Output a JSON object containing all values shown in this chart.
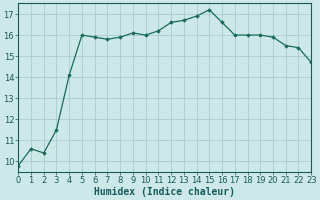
{
  "x": [
    0,
    1,
    2,
    3,
    4,
    5,
    6,
    7,
    8,
    9,
    10,
    11,
    12,
    13,
    14,
    15,
    16,
    17,
    18,
    19,
    20,
    21,
    22,
    23
  ],
  "y": [
    9.8,
    10.6,
    10.4,
    11.5,
    14.1,
    16.0,
    15.9,
    15.8,
    15.9,
    16.1,
    16.0,
    16.2,
    16.6,
    16.7,
    16.9,
    17.2,
    16.6,
    16.0,
    16.0,
    16.0,
    15.9,
    15.5,
    15.4,
    14.7
  ],
  "xlim": [
    0,
    23
  ],
  "ylim": [
    9.5,
    17.5
  ],
  "yticks": [
    10,
    11,
    12,
    13,
    14,
    15,
    16,
    17
  ],
  "xticks": [
    0,
    1,
    2,
    3,
    4,
    5,
    6,
    7,
    8,
    9,
    10,
    11,
    12,
    13,
    14,
    15,
    16,
    17,
    18,
    19,
    20,
    21,
    22,
    23
  ],
  "xlabel": "Humidex (Indice chaleur)",
  "line_color": "#1a6b5a",
  "marker": "D",
  "marker_size": 1.8,
  "bg_color": "#cde8e8",
  "grid_color": "#a0c8c8",
  "line_width": 0.9,
  "tick_fontsize": 6.0,
  "xlabel_fontsize": 7.0,
  "xlabel_bold": true
}
